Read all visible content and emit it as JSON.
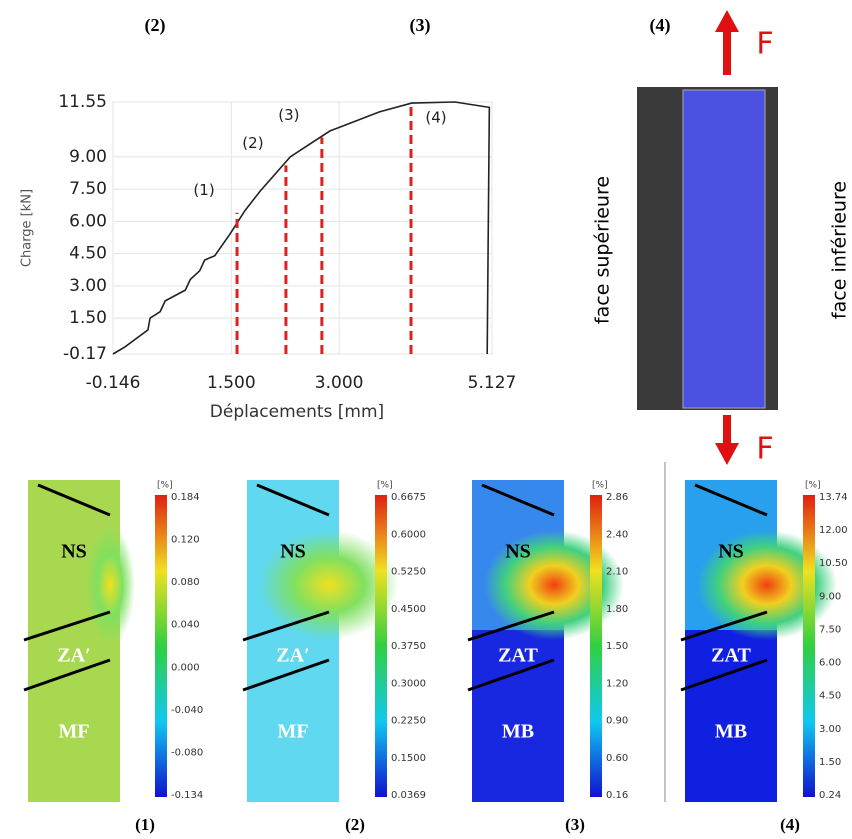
{
  "chart_data": {
    "type": "line",
    "x_label": "Déplacements [mm]",
    "y_label": "Charge [kN]",
    "color": "#222222",
    "x": [
      -0.146,
      0.02,
      0.34,
      0.37,
      0.51,
      0.58,
      0.86,
      0.93,
      1.06,
      1.13,
      1.27,
      1.48,
      1.69,
      1.9,
      2.32,
      2.87,
      3.57,
      4.01,
      4.61,
      5.09,
      5.06
    ],
    "values": [
      -0.17,
      0.16,
      0.95,
      1.5,
      1.8,
      2.3,
      2.8,
      3.3,
      3.7,
      4.2,
      4.4,
      5.4,
      6.5,
      7.4,
      9.0,
      10.2,
      11.1,
      11.5,
      11.55,
      11.3,
      -0.17
    ],
    "xlim": [
      -0.146,
      5.127
    ],
    "xticks": [
      -0.146,
      {
        "value": 1.5,
        "label": "1.500"
      },
      {
        "value": 3,
        "label": "3.000"
      },
      5.127
    ],
    "ylim": [
      -0.17,
      11.55
    ],
    "yticks": [
      -0.17,
      {
        "value": 1.5,
        "label": "1.50"
      },
      {
        "value": 3,
        "label": "3.00"
      },
      {
        "value": 4.5,
        "label": "4.50"
      },
      {
        "value": 6,
        "label": "6.00"
      },
      {
        "value": 7.5,
        "label": "7.50"
      },
      {
        "value": 9,
        "label": "9.00"
      },
      11.55
    ],
    "grid": true,
    "annotations": [
      {
        "label": "(1)",
        "x": 1.58,
        "y": 6.4,
        "color": "#e02020"
      },
      {
        "label": "(2)",
        "x": 2.26,
        "y": 8.6,
        "color": "#e02020"
      },
      {
        "label": "(3)",
        "x": 2.76,
        "y": 9.9,
        "color": "#e02020"
      },
      {
        "label": "(4)",
        "x": 4.0,
        "y": 11.5,
        "color": "#e02020"
      }
    ]
  },
  "figure": {
    "top_labels": [
      "(2)",
      "(3)",
      "(4)"
    ],
    "force": "F",
    "face_top": "face supérieure",
    "face_bottom": "face inférieure",
    "maps": [
      {
        "label": "(1)",
        "unit": "[%]",
        "zones": [
          "NS",
          "ZA′",
          "MF"
        ],
        "ticks": [
          "0.184",
          "0.120",
          "0.080",
          "0.040",
          "0.000",
          "-0.040",
          "-0.080",
          "-0.134"
        ]
      },
      {
        "label": "(2)",
        "unit": "[%]",
        "zones": [
          "NS",
          "ZA′",
          "MF"
        ],
        "ticks": [
          "0.6675",
          "0.6000",
          "0.5250",
          "0.4500",
          "0.3750",
          "0.3000",
          "0.2250",
          "0.1500",
          "0.0369"
        ]
      },
      {
        "label": "(3)",
        "unit": "[%]",
        "zones": [
          "NS",
          "ZAT",
          "MB"
        ],
        "ticks": [
          "2.86",
          "2.40",
          "2.10",
          "1.80",
          "1.50",
          "1.20",
          "0.90",
          "0.60",
          "0.16"
        ]
      },
      {
        "label": "(4)",
        "unit": "[%]",
        "zones": [
          "NS",
          "ZAT",
          "MB"
        ],
        "ticks": [
          "13.74",
          "12.00",
          "10.50",
          "9.00",
          "7.50",
          "6.00",
          "4.50",
          "3.00",
          "1.50",
          "0.24"
        ]
      }
    ]
  }
}
